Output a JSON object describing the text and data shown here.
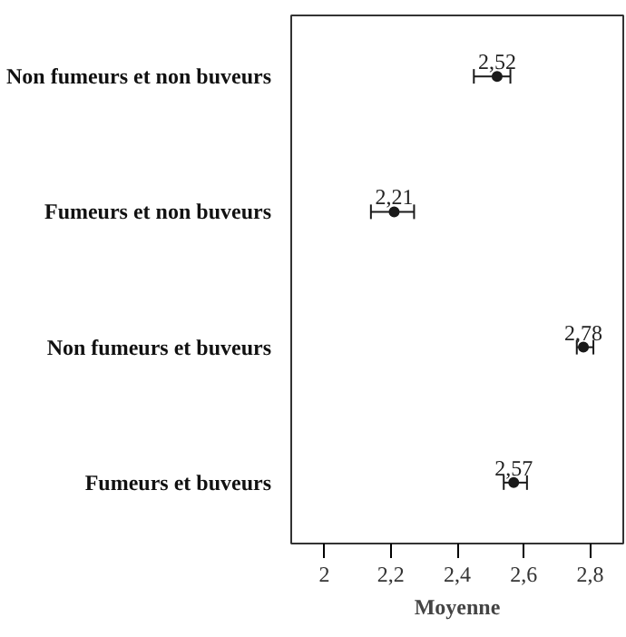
{
  "chart_data": {
    "type": "scatter",
    "orientation": "horizontal",
    "xlabel": "Moyenne",
    "categories": [
      "Non fumeurs et non buveurs",
      "Fumeurs et non buveurs",
      "Non fumeurs et buveurs",
      "Fumeurs et buveurs"
    ],
    "values": [
      2.52,
      2.21,
      2.78,
      2.57
    ],
    "errors": [
      [
        2.45,
        2.56
      ],
      [
        2.14,
        2.27
      ],
      [
        2.76,
        2.81
      ],
      [
        2.54,
        2.61
      ]
    ],
    "value_labels": [
      "2,52",
      "2,21",
      "2,78",
      "2,57"
    ],
    "color": "#1a1a1a",
    "marker": "circle",
    "xlim": [
      1.9,
      2.9
    ],
    "xticks": [
      2,
      {
        "value": 2.2,
        "label": "2,2"
      },
      {
        "value": 2.4,
        "label": "2,4"
      },
      {
        "value": 2.6,
        "label": "2,6"
      },
      {
        "value": 2.8,
        "label": "2,8"
      }
    ],
    "grid": false
  }
}
